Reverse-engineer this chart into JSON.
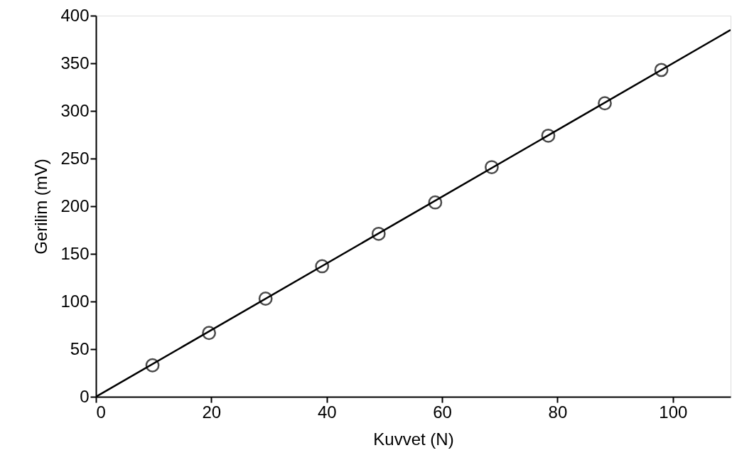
{
  "chart_data": {
    "type": "scatter",
    "xlabel": "Kuvvet (N)",
    "ylabel": "Gerilim (mV)",
    "xlim": [
      0,
      110
    ],
    "ylim": [
      0,
      400
    ],
    "xticks": [
      0,
      20,
      40,
      60,
      80,
      100
    ],
    "yticks": [
      0,
      50,
      100,
      150,
      200,
      250,
      300,
      350,
      400
    ],
    "grid": false,
    "marker": "circle",
    "series": [
      {
        "color": "#000000",
        "x": [
          9.8,
          19.6,
          29.4,
          39.2,
          49.0,
          58.8,
          68.6,
          78.4,
          88.2,
          98.0
        ],
        "values": [
          33,
          67,
          103,
          137,
          171,
          204,
          241,
          274,
          308,
          343
        ]
      },
      {
        "type": "line",
        "color": "#000000",
        "line_style": "solid",
        "marker": "none",
        "x": [
          0,
          110
        ],
        "values": [
          0,
          385
        ]
      }
    ]
  }
}
